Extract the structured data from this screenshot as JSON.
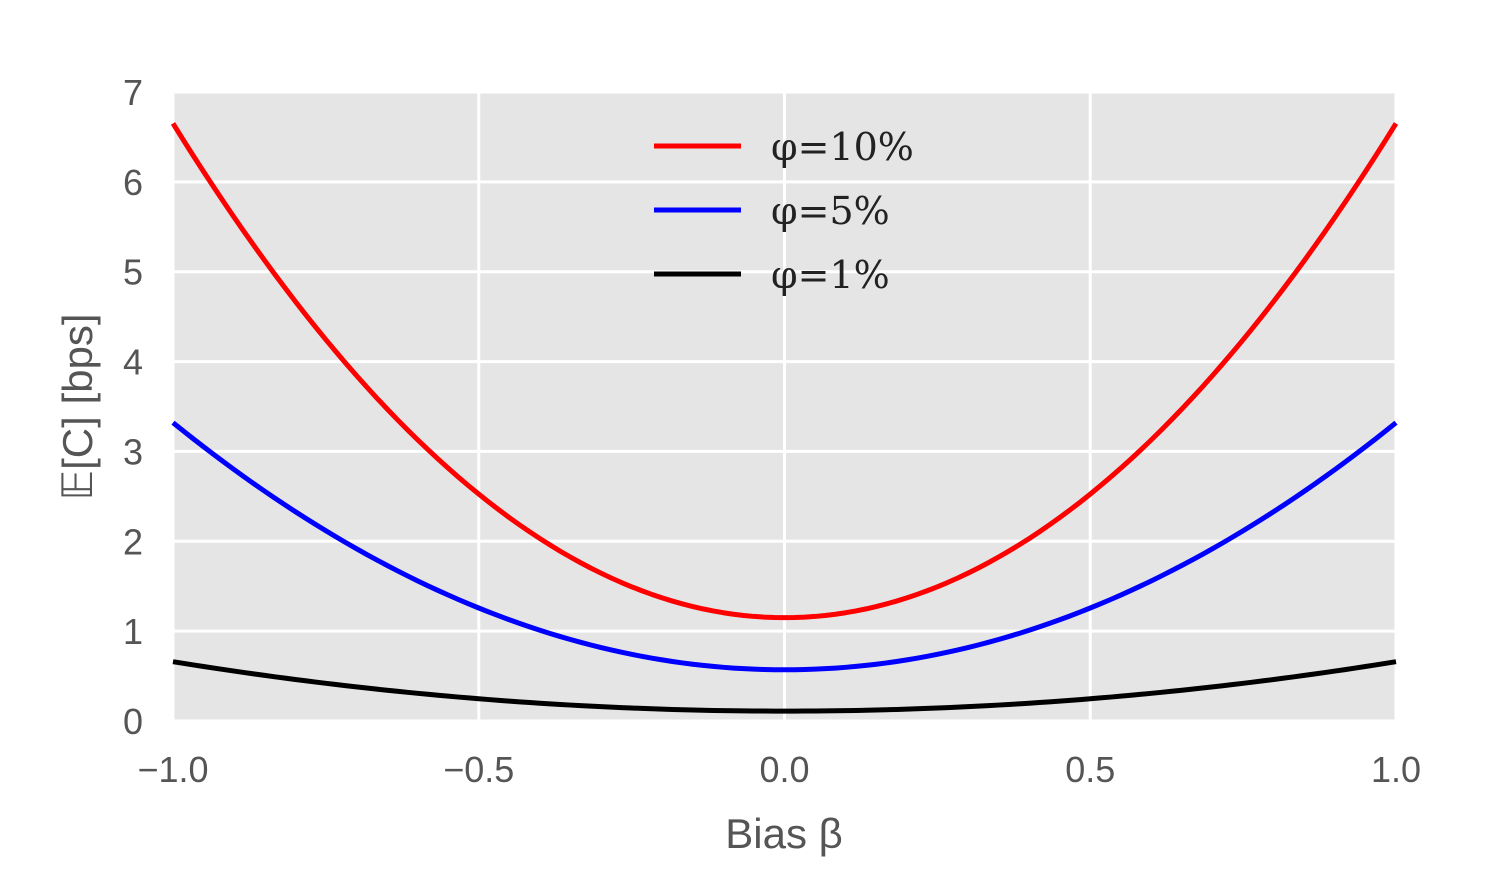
{
  "chart_data": {
    "type": "line",
    "xlabel": "Bias β",
    "ylabel": "𝔼[C] [bps]",
    "xlim": [
      -1.0,
      1.0
    ],
    "ylim": [
      0,
      7
    ],
    "xticks": [
      "−1.0",
      "−0.5",
      "0.0",
      "0.5",
      "1.0"
    ],
    "xtick_values": [
      -1.0,
      -0.5,
      0.0,
      0.5,
      1.0
    ],
    "yticks": [
      "0",
      "1",
      "2",
      "3",
      "4",
      "5",
      "6",
      "7"
    ],
    "ytick_values": [
      0,
      1,
      2,
      3,
      4,
      5,
      6,
      7
    ],
    "grid": true,
    "legend_position": "top-center",
    "x": [
      -1.0,
      -0.75,
      -0.5,
      -0.25,
      0.0,
      0.25,
      0.5,
      0.75,
      1.0
    ],
    "series": [
      {
        "name": "φ=10%",
        "color": "#ff0000",
        "values": [
          6.65,
          4.3,
          2.52,
          1.6,
          1.15,
          1.6,
          2.52,
          4.3,
          6.65
        ]
      },
      {
        "name": "φ=5%",
        "color": "#0000ff",
        "values": [
          3.32,
          2.12,
          1.26,
          0.8,
          0.57,
          0.8,
          1.26,
          2.12,
          3.32
        ]
      },
      {
        "name": "φ=1%",
        "color": "#000000",
        "values": [
          0.66,
          0.42,
          0.25,
          0.16,
          0.11,
          0.16,
          0.25,
          0.42,
          0.66
        ]
      }
    ]
  },
  "colors": {
    "plot_background": "#e5e5e5",
    "grid": "#ffffff",
    "tick_text": "#555555"
  }
}
